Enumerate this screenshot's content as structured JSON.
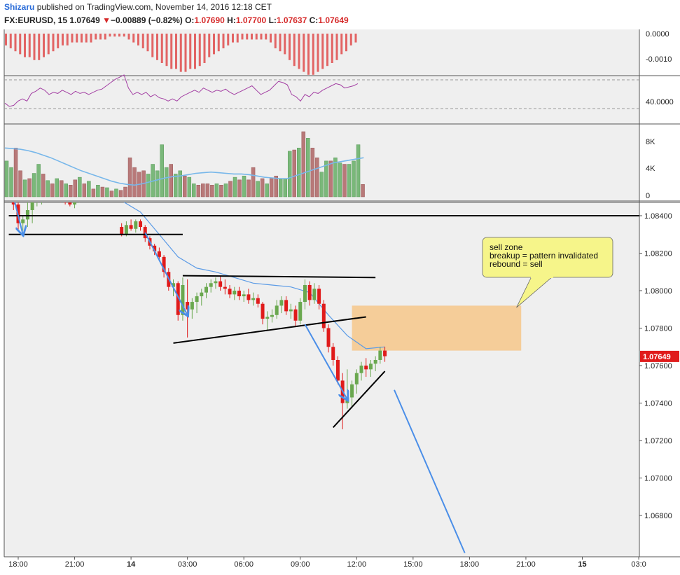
{
  "header": {
    "author": "Shizaru",
    "published_text": "published on TradingView.com, November 14, 2016 12:18 CET",
    "symbol": "FX:EURUSD, 15",
    "last": "1.07649",
    "change_arrow": "▼",
    "change": "−0.00889 (−0.82%)",
    "o_label": "O:",
    "o_value": "1.07690",
    "h_label": "H:",
    "h_value": "1.07700",
    "l_label": "L:",
    "l_value": "1.07637",
    "c_label": "C:",
    "c_value": "1.07649"
  },
  "chart_data": {
    "type": "candlestick",
    "symbol": "FX:EURUSD",
    "interval": "15",
    "price_axis": {
      "ylim": [
        1.066,
        1.085
      ],
      "ticks": [
        "1.08400",
        "1.08200",
        "1.08000",
        "1.07800",
        "1.07600",
        "1.07400",
        "1.07200",
        "1.07000",
        "1.06800"
      ],
      "tick_values": [
        1.084,
        1.082,
        1.08,
        1.078,
        1.076,
        1.074,
        1.072,
        1.07,
        1.068
      ],
      "last_price_label": "1.07649"
    },
    "time_axis": {
      "ticks": [
        "18:00",
        "21:00",
        "14",
        "03:00",
        "06:00",
        "09:00",
        "12:00",
        "15:00",
        "18:00",
        "21:00",
        "15",
        "03:0"
      ],
      "bold_ticks": [
        "14",
        "15"
      ],
      "hours_from_start": [
        0,
        3,
        6,
        9,
        12,
        15,
        18,
        21,
        24,
        27,
        30,
        33
      ]
    },
    "bar_hours": 0.25,
    "candles": [
      [
        -0.25,
        1.085,
        1.0852,
        1.0843,
        1.0846
      ],
      [
        0.0,
        1.0846,
        1.0847,
        1.0832,
        1.0836
      ],
      [
        0.25,
        1.0836,
        1.084,
        1.0832,
        1.0838
      ],
      [
        0.5,
        1.0838,
        1.0848,
        1.0834,
        1.0843
      ],
      [
        0.75,
        1.0843,
        1.085,
        1.0836,
        1.0848
      ],
      [
        1.0,
        1.0848,
        1.0852,
        1.0845,
        1.085
      ],
      [
        1.25,
        1.085,
        1.0852,
        1.0846,
        1.0851
      ],
      [
        2.0,
        1.0851,
        1.0852,
        1.0848,
        1.085
      ],
      [
        2.25,
        1.085,
        1.0851,
        1.0847,
        1.0849
      ],
      [
        2.5,
        1.0849,
        1.0851,
        1.0846,
        1.0847
      ],
      [
        2.75,
        1.0847,
        1.085,
        1.0845,
        1.0846
      ],
      [
        3.0,
        1.0846,
        1.0849,
        1.0844,
        1.0848
      ],
      [
        3.25,
        1.0848,
        1.0851,
        1.0847,
        1.085
      ],
      [
        3.5,
        1.085,
        1.0851,
        1.0848,
        1.0849
      ],
      [
        3.75,
        1.0849,
        1.0851,
        1.0848,
        1.085
      ],
      [
        4.0,
        1.085,
        1.0851,
        1.0849,
        1.085
      ],
      [
        4.25,
        1.085,
        1.0851,
        1.0849,
        1.085
      ],
      [
        5.5,
        1.0834,
        1.0836,
        1.0829,
        1.083
      ],
      [
        5.75,
        1.083,
        1.0837,
        1.0829,
        1.0835
      ],
      [
        6.0,
        1.0835,
        1.0838,
        1.0832,
        1.0833
      ],
      [
        6.25,
        1.0833,
        1.0838,
        1.0831,
        1.0837
      ],
      [
        6.5,
        1.0837,
        1.0838,
        1.0832,
        1.0834
      ],
      [
        6.75,
        1.0834,
        1.0835,
        1.0826,
        1.0828
      ],
      [
        7.0,
        1.0828,
        1.0829,
        1.0822,
        1.0824
      ],
      [
        7.25,
        1.0824,
        1.0825,
        1.0819,
        1.0821
      ],
      [
        7.5,
        1.0821,
        1.0823,
        1.0816,
        1.0818
      ],
      [
        7.75,
        1.0818,
        1.0819,
        1.0807,
        1.081
      ],
      [
        8.0,
        1.081,
        1.0812,
        1.08,
        1.0802
      ],
      [
        8.25,
        1.0802,
        1.0806,
        1.0797,
        1.0804
      ],
      [
        8.5,
        1.0804,
        1.0805,
        1.0784,
        1.0787
      ],
      [
        8.75,
        1.0787,
        1.0807,
        1.0784,
        1.0803
      ],
      [
        9.0,
        1.0794,
        1.0806,
        1.0775,
        1.079
      ],
      [
        9.25,
        1.079,
        1.0796,
        1.0785,
        1.0794
      ],
      [
        9.5,
        1.0794,
        1.0799,
        1.0788,
        1.0797
      ],
      [
        9.75,
        1.0797,
        1.0801,
        1.0792,
        1.0799
      ],
      [
        10.0,
        1.0799,
        1.0804,
        1.0796,
        1.0802
      ],
      [
        10.25,
        1.0802,
        1.0806,
        1.0799,
        1.0804
      ],
      [
        10.5,
        1.0804,
        1.0807,
        1.0801,
        1.0805
      ],
      [
        10.75,
        1.0805,
        1.0808,
        1.08,
        1.0802
      ],
      [
        11.0,
        1.0802,
        1.0806,
        1.0798,
        1.0801
      ],
      [
        11.25,
        1.0801,
        1.0803,
        1.0796,
        1.0798
      ],
      [
        11.5,
        1.0798,
        1.0802,
        1.0795,
        1.08
      ],
      [
        11.75,
        1.08,
        1.0802,
        1.0795,
        1.0797
      ],
      [
        12.0,
        1.0797,
        1.08,
        1.0794,
        1.0798
      ],
      [
        12.25,
        1.0798,
        1.0801,
        1.0793,
        1.0795
      ],
      [
        12.5,
        1.0795,
        1.0799,
        1.0792,
        1.0796
      ],
      [
        12.75,
        1.0796,
        1.0798,
        1.0791,
        1.0793
      ],
      [
        13.0,
        1.0793,
        1.0794,
        1.0782,
        1.0785
      ],
      [
        13.25,
        1.0785,
        1.0789,
        1.0779,
        1.0786
      ],
      [
        13.5,
        1.0786,
        1.079,
        1.0783,
        1.0787
      ],
      [
        13.75,
        1.0787,
        1.0795,
        1.0785,
        1.0792
      ],
      [
        14.0,
        1.0792,
        1.0797,
        1.0788,
        1.0795
      ],
      [
        14.25,
        1.0795,
        1.0797,
        1.0787,
        1.0789
      ],
      [
        14.5,
        1.0789,
        1.0793,
        1.0785,
        1.079
      ],
      [
        14.75,
        1.079,
        1.0792,
        1.0781,
        1.0784
      ],
      [
        15.0,
        1.0784,
        1.0796,
        1.0782,
        1.0794
      ],
      [
        15.25,
        1.0794,
        1.0806,
        1.079,
        1.0803
      ],
      [
        15.5,
        1.0803,
        1.0805,
        1.0792,
        1.0795
      ],
      [
        15.75,
        1.0795,
        1.0804,
        1.0793,
        1.0801
      ],
      [
        16.0,
        1.0801,
        1.0803,
        1.079,
        1.0793
      ],
      [
        16.25,
        1.0793,
        1.0795,
        1.0778,
        1.078
      ],
      [
        16.5,
        1.078,
        1.0782,
        1.0767,
        1.077
      ],
      [
        16.75,
        1.077,
        1.0772,
        1.076,
        1.0763
      ],
      [
        17.0,
        1.0763,
        1.0765,
        1.075,
        1.0752
      ],
      [
        17.25,
        1.0752,
        1.0756,
        1.0726,
        1.074
      ],
      [
        17.5,
        1.074,
        1.0758,
        1.0737,
        1.0743
      ],
      [
        17.75,
        1.0743,
        1.0752,
        1.0738,
        1.075
      ],
      [
        18.0,
        1.075,
        1.0758,
        1.0745,
        1.0756
      ],
      [
        18.25,
        1.0756,
        1.0762,
        1.0752,
        1.076
      ],
      [
        18.5,
        1.076,
        1.0764,
        1.0754,
        1.0758
      ],
      [
        18.75,
        1.0758,
        1.0763,
        1.0754,
        1.0761
      ],
      [
        19.0,
        1.0761,
        1.0765,
        1.0757,
        1.0763
      ],
      [
        19.25,
        1.0763,
        1.077,
        1.0761,
        1.0768
      ],
      [
        19.5,
        1.0768,
        1.077,
        1.0762,
        1.0765
      ]
    ],
    "moving_average": [
      [
        -0.25,
        1.0852
      ],
      [
        2.0,
        1.0851
      ],
      [
        4.5,
        1.085
      ],
      [
        5.5,
        1.0848
      ],
      [
        6.5,
        1.0842
      ],
      [
        7.5,
        1.083
      ],
      [
        8.5,
        1.0818
      ],
      [
        9.5,
        1.0812
      ],
      [
        10.5,
        1.081
      ],
      [
        11.5,
        1.0807
      ],
      [
        12.5,
        1.0804
      ],
      [
        13.5,
        1.0803
      ],
      [
        14.5,
        1.0802
      ],
      [
        15.5,
        1.0799
      ],
      [
        16.5,
        1.0787
      ],
      [
        17.5,
        1.0776
      ],
      [
        18.5,
        1.0769
      ],
      [
        19.5,
        1.077
      ]
    ],
    "lines": [
      {
        "name": "resistance-top",
        "points": [
          [
            -0.5,
            1.084
          ],
          [
            34,
            1.084
          ]
        ],
        "color": "#000000"
      },
      {
        "name": "support-left",
        "points": [
          [
            -0.5,
            1.083
          ],
          [
            8.75,
            1.083
          ]
        ],
        "color": "#000000"
      },
      {
        "name": "triangle-top",
        "points": [
          [
            8.75,
            1.0808
          ],
          [
            19.0,
            1.0807
          ]
        ],
        "color": "#000000"
      },
      {
        "name": "triangle-bottom",
        "points": [
          [
            8.25,
            1.0772
          ],
          [
            18.5,
            1.0786
          ]
        ],
        "color": "#000000"
      },
      {
        "name": "wedge-lower",
        "points": [
          [
            16.75,
            1.0727
          ],
          [
            19.5,
            1.0757
          ]
        ],
        "color": "#000000"
      },
      {
        "name": "down-arrow-1",
        "points": [
          [
            -0.25,
            1.085
          ],
          [
            0.25,
            1.083
          ]
        ],
        "color": "#4a8ee8",
        "arrow": true
      },
      {
        "name": "down-arrow-2",
        "points": [
          [
            6.75,
            1.0831
          ],
          [
            9.0,
            1.0787
          ]
        ],
        "color": "#4a8ee8",
        "arrow": true
      },
      {
        "name": "down-arrow-3",
        "points": [
          [
            15.25,
            1.0782
          ],
          [
            17.5,
            1.0742
          ]
        ],
        "color": "#4a8ee8",
        "arrow": true
      },
      {
        "name": "projection",
        "points": [
          [
            20.0,
            1.0747
          ],
          [
            23.75,
            1.066
          ]
        ],
        "color": "#4a8ee8"
      }
    ],
    "zone": {
      "name": "sell zone",
      "x": [
        17.75,
        26.75
      ],
      "y": [
        1.0768,
        1.0792
      ],
      "color": "#f5c98f"
    },
    "callout": {
      "lines": [
        "sell zone",
        "breakup = pattern invalidated",
        "rebound = sell"
      ],
      "anchor": [
        26.5,
        1.0791
      ]
    },
    "macd": {
      "axis_ticks": [
        "0.0000",
        "-0.0010"
      ],
      "hist": [
        -0.0004,
        -0.0005,
        -0.0006,
        -0.0007,
        -0.0008,
        -0.0008,
        -0.0009,
        -0.0009,
        -0.0008,
        -0.0007,
        -0.0006,
        -0.0005,
        -0.0004,
        -0.0004,
        -0.0003,
        -0.0003,
        -0.0003,
        -0.0003,
        -0.0003,
        -0.0002,
        -0.0002,
        -0.0002,
        -0.0001,
        -0.0001,
        -0.0001,
        -0.0001,
        -0.0002,
        -0.0003,
        -0.0004,
        -0.0005,
        -0.0006,
        -0.0008,
        -0.0009,
        -0.001,
        -0.0011,
        -0.0012,
        -0.0012,
        -0.0013,
        -0.0013,
        -0.0012,
        -0.0012,
        -0.0011,
        -0.001,
        -0.0008,
        -0.0007,
        -0.0006,
        -0.0005,
        -0.0004,
        -0.0003,
        -0.0003,
        -0.0002,
        -0.0002,
        -0.0002,
        -0.0002,
        -0.0002,
        -0.0002,
        -0.0003,
        -0.0005,
        -0.0006,
        -0.0007,
        -0.0009,
        -0.0011,
        -0.0012,
        -0.0013,
        -0.0014,
        -0.0014,
        -0.0013,
        -0.0012,
        -0.0011,
        -0.001,
        -0.0009,
        -0.0007,
        -0.0006,
        -0.0004,
        -0.0003
      ]
    },
    "rsi": {
      "axis_ticks": [
        "40.0000"
      ],
      "values": [
        36,
        33,
        34,
        38,
        40,
        38,
        45,
        47,
        50,
        48,
        44,
        46,
        45,
        48,
        46,
        44,
        47,
        45,
        46,
        44,
        46,
        48,
        49,
        52,
        55,
        58,
        60,
        62,
        50,
        44,
        46,
        44,
        46,
        42,
        44,
        41,
        40,
        38,
        40,
        38,
        42,
        44,
        46,
        48,
        46,
        50,
        48,
        46,
        48,
        47,
        49,
        46,
        44,
        46,
        48,
        50,
        52,
        48,
        44,
        46,
        48,
        52,
        56,
        55,
        53,
        44,
        42,
        38,
        44,
        42,
        46,
        45,
        48,
        50,
        52,
        54,
        53,
        50,
        51,
        52,
        54
      ]
    },
    "volume": {
      "axis_ticks": [
        "8K",
        "4K",
        "0"
      ],
      "bars": [
        [
          5.5,
          1
        ],
        [
          4.5,
          1
        ],
        [
          7.5,
          0
        ],
        [
          4.0,
          0
        ],
        [
          2.6,
          1
        ],
        [
          2.8,
          0
        ],
        [
          3.6,
          1
        ],
        [
          5.0,
          1
        ],
        [
          3.5,
          0
        ],
        [
          2.5,
          1
        ],
        [
          2.0,
          0
        ],
        [
          2.8,
          1
        ],
        [
          2.5,
          0
        ],
        [
          2.0,
          1
        ],
        [
          1.8,
          0
        ],
        [
          2.6,
          0
        ],
        [
          3.0,
          1
        ],
        [
          2.0,
          0
        ],
        [
          2.4,
          1
        ],
        [
          1.2,
          0
        ],
        [
          1.8,
          1
        ],
        [
          1.5,
          0
        ],
        [
          1.4,
          1
        ],
        [
          0.9,
          0
        ],
        [
          1.2,
          1
        ],
        [
          1.0,
          0
        ],
        [
          1.5,
          0
        ],
        [
          6.0,
          0
        ],
        [
          4.5,
          0
        ],
        [
          3.8,
          0
        ],
        [
          4.0,
          0
        ],
        [
          3.5,
          1
        ],
        [
          5.0,
          1
        ],
        [
          4.0,
          1
        ],
        [
          8.0,
          1
        ],
        [
          4.5,
          1
        ],
        [
          5.0,
          0
        ],
        [
          3.5,
          1
        ],
        [
          4.0,
          1
        ],
        [
          3.2,
          0
        ],
        [
          3.0,
          1
        ],
        [
          2.0,
          1
        ],
        [
          1.8,
          0
        ],
        [
          2.0,
          0
        ],
        [
          2.0,
          0
        ],
        [
          1.8,
          0
        ],
        [
          2.0,
          1
        ],
        [
          1.8,
          0
        ],
        [
          2.0,
          1
        ],
        [
          2.4,
          0
        ],
        [
          3.0,
          1
        ],
        [
          2.6,
          0
        ],
        [
          3.2,
          1
        ],
        [
          2.6,
          0
        ],
        [
          4.5,
          0
        ],
        [
          2.4,
          1
        ],
        [
          2.8,
          0
        ],
        [
          2.0,
          1
        ],
        [
          2.8,
          0
        ],
        [
          3.2,
          0
        ],
        [
          2.7,
          1
        ],
        [
          2.8,
          1
        ],
        [
          7.0,
          1
        ],
        [
          7.2,
          0
        ],
        [
          7.5,
          1
        ],
        [
          10.0,
          0
        ],
        [
          9.0,
          1
        ],
        [
          7.5,
          0
        ],
        [
          6.0,
          0
        ],
        [
          3.8,
          1
        ],
        [
          5.5,
          1
        ],
        [
          5.5,
          0
        ],
        [
          6.0,
          1
        ],
        [
          5.2,
          1
        ],
        [
          5.0,
          0
        ],
        [
          5.0,
          1
        ],
        [
          5.5,
          1
        ],
        [
          8.0,
          1
        ],
        [
          1.9,
          0
        ]
      ],
      "ma": [
        7.5,
        7.4,
        7.3,
        7.1,
        6.8,
        6.4,
        6.0,
        5.5,
        5.0,
        4.5,
        4.0,
        3.6,
        3.2,
        2.8,
        2.4,
        2.1,
        1.9,
        1.8,
        2.0,
        2.3,
        2.6,
        2.9,
        3.1,
        3.2,
        3.4,
        3.6,
        3.7,
        3.8,
        3.7,
        3.6,
        3.5,
        3.5,
        3.4,
        3.2,
        3.0,
        2.9,
        2.8,
        2.8,
        3.2,
        3.6,
        4.0,
        4.4,
        4.8,
        5.2,
        5.4,
        5.6,
        5.8,
        6.0
      ]
    }
  }
}
